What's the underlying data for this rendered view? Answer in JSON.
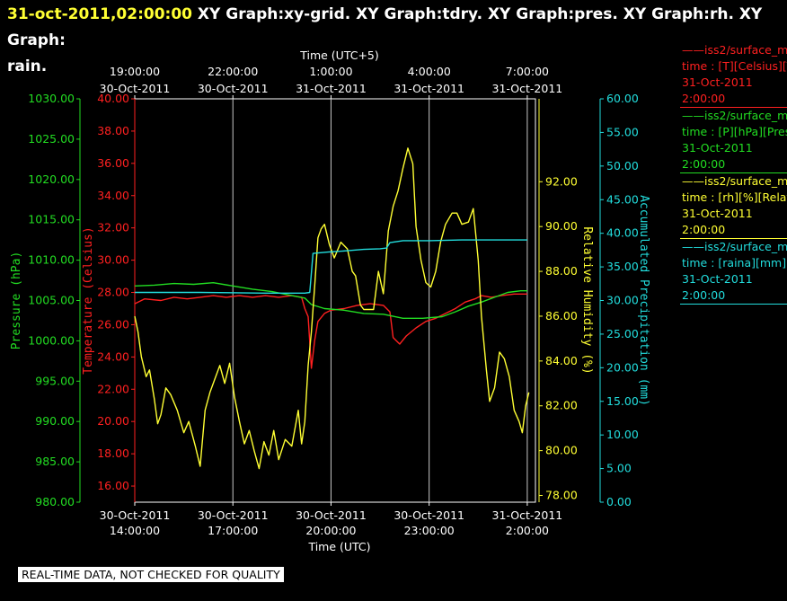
{
  "header": {
    "timestamp": "31-oct-2011,02:00:00",
    "graphs": "  XY Graph:xy-grid.  XY Graph:tdry.  XY Graph:pres.  XY Graph:rh.  XY Graph:",
    "graphs_wrap": "rain."
  },
  "legend": [
    {
      "line1": "——iss2/surface_met",
      "line2": "time : [T][Celsius][T",
      "date": "31-Oct-2011",
      "time": "2:00:00",
      "color": "#ff2020"
    },
    {
      "line1": "——iss2/surface_met",
      "line2": "time : [P][hPa][Pres",
      "date": "31-Oct-2011",
      "time": "2:00:00",
      "color": "#22dd22"
    },
    {
      "line1": "——iss2/surface_met",
      "line2": "time : [rh][%][Relati",
      "date": "31-Oct-2011",
      "time": "2:00:00",
      "color": "#ffff33"
    },
    {
      "line1": "——iss2/surface_met",
      "line2": "time : [raina][mm][A",
      "date": "31-Oct-2011",
      "time": "2:00:00",
      "color": "#22dddd"
    }
  ],
  "footer": {
    "warning": "REAL-TIME DATA, NOT CHECKED FOR QUALITY"
  },
  "chart_data": {
    "type": "line",
    "top_axis": {
      "label": "Time (UTC+5)",
      "ticks": [
        {
          "time": "19:00:00",
          "date": "30-Oct-2011",
          "t": 0
        },
        {
          "time": "22:00:00",
          "date": "30-Oct-2011",
          "t": 3
        },
        {
          "time": "1:00:00",
          "date": "31-Oct-2011",
          "t": 6
        },
        {
          "time": "4:00:00",
          "date": "31-Oct-2011",
          "t": 9
        },
        {
          "time": "7:00:00",
          "date": "31-Oct-2011",
          "t": 12
        }
      ]
    },
    "bottom_axis": {
      "label": "Time (UTC)",
      "ticks": [
        {
          "date": "30-Oct-2011",
          "time": "14:00:00",
          "t": 0
        },
        {
          "date": "30-Oct-2011",
          "time": "17:00:00",
          "t": 3
        },
        {
          "date": "30-Oct-2011",
          "time": "20:00:00",
          "t": 6
        },
        {
          "date": "30-Oct-2011",
          "time": "23:00:00",
          "t": 9
        },
        {
          "date": "31-Oct-2011",
          "time": "2:00:00",
          "t": 12
        }
      ]
    },
    "x_range_hours": [
      0,
      12.25
    ],
    "grid": true,
    "axes": {
      "pressure": {
        "label": "Pressure (hPa)",
        "color": "#22dd22",
        "range": [
          980,
          1030
        ],
        "ticks": [
          "1030.00",
          "1025.00",
          "1020.00",
          "1015.00",
          "1010.00",
          "1005.00",
          "1000.00",
          "995.00",
          "990.00",
          "985.00",
          "980.00"
        ]
      },
      "temperature": {
        "label": "Temperature (Celsius)",
        "color": "#ff2020",
        "range": [
          15,
          40
        ],
        "ticks": [
          "40.00",
          "38.00",
          "36.00",
          "34.00",
          "32.00",
          "30.00",
          "28.00",
          "26.00",
          "24.00",
          "22.00",
          "20.00",
          "18.00",
          "16.00"
        ]
      },
      "rh": {
        "label": "Relative Humidity (%)",
        "color": "#ffff33",
        "range": [
          77.7,
          95.7
        ],
        "ticks": [
          "92.00",
          "90.00",
          "88.00",
          "86.00",
          "84.00",
          "82.00",
          "80.00",
          "78.00"
        ]
      },
      "precip": {
        "label": "Accumulated Precipitation (mm)",
        "color": "#22dddd",
        "range": [
          0,
          60
        ],
        "ticks": [
          "60.00",
          "55.00",
          "50.00",
          "45.00",
          "40.00",
          "35.00",
          "30.00",
          "25.00",
          "20.00",
          "15.00",
          "10.00",
          "5.00",
          "0.00"
        ]
      }
    },
    "series": [
      {
        "name": "iss2/surface_met T",
        "axis": "temperature",
        "color": "#ff2020",
        "points": [
          [
            0,
            27.3
          ],
          [
            0.3,
            27.6
          ],
          [
            0.8,
            27.5
          ],
          [
            1.2,
            27.7
          ],
          [
            1.6,
            27.6
          ],
          [
            2,
            27.7
          ],
          [
            2.4,
            27.8
          ],
          [
            2.8,
            27.7
          ],
          [
            3.2,
            27.8
          ],
          [
            3.6,
            27.7
          ],
          [
            4,
            27.8
          ],
          [
            4.4,
            27.7
          ],
          [
            4.8,
            27.8
          ],
          [
            5.1,
            27.7
          ],
          [
            5.2,
            27.0
          ],
          [
            5.3,
            26.5
          ],
          [
            5.4,
            23.3
          ],
          [
            5.5,
            25.0
          ],
          [
            5.6,
            26.2
          ],
          [
            5.8,
            26.7
          ],
          [
            6,
            26.9
          ],
          [
            6.4,
            27.0
          ],
          [
            6.8,
            27.2
          ],
          [
            7.2,
            27.3
          ],
          [
            7.6,
            27.2
          ],
          [
            7.8,
            26.8
          ],
          [
            7.9,
            25.2
          ],
          [
            8.1,
            24.8
          ],
          [
            8.3,
            25.3
          ],
          [
            8.6,
            25.8
          ],
          [
            8.9,
            26.2
          ],
          [
            9.2,
            26.4
          ],
          [
            9.5,
            26.7
          ],
          [
            9.8,
            27.0
          ],
          [
            10.1,
            27.4
          ],
          [
            10.4,
            27.6
          ],
          [
            10.6,
            27.8
          ],
          [
            10.9,
            27.7
          ],
          [
            11.2,
            27.8
          ],
          [
            11.6,
            27.9
          ],
          [
            11.9,
            27.9
          ],
          [
            12,
            27.9
          ]
        ]
      },
      {
        "name": "iss2/surface_met P",
        "axis": "pressure",
        "color": "#22dd22",
        "points": [
          [
            0,
            1006.8
          ],
          [
            0.6,
            1006.9
          ],
          [
            1.2,
            1007.1
          ],
          [
            1.8,
            1007.0
          ],
          [
            2.4,
            1007.2
          ],
          [
            3,
            1006.8
          ],
          [
            3.6,
            1006.4
          ],
          [
            4.2,
            1006.1
          ],
          [
            4.8,
            1005.6
          ],
          [
            5.2,
            1005.3
          ],
          [
            5.4,
            1004.5
          ],
          [
            5.8,
            1004.0
          ],
          [
            6.4,
            1003.8
          ],
          [
            7,
            1003.4
          ],
          [
            7.6,
            1003.3
          ],
          [
            8.2,
            1002.8
          ],
          [
            8.8,
            1002.8
          ],
          [
            9.4,
            1003.0
          ],
          [
            9.8,
            1003.6
          ],
          [
            10.2,
            1004.3
          ],
          [
            10.6,
            1004.8
          ],
          [
            11,
            1005.4
          ],
          [
            11.4,
            1006.0
          ],
          [
            11.8,
            1006.2
          ],
          [
            12,
            1006.2
          ]
        ]
      },
      {
        "name": "iss2/surface_met rh",
        "axis": "rh",
        "color": "#ffff33",
        "points": [
          [
            0,
            86.0
          ],
          [
            0.1,
            85.3
          ],
          [
            0.2,
            84.2
          ],
          [
            0.35,
            83.3
          ],
          [
            0.45,
            83.6
          ],
          [
            0.6,
            82.3
          ],
          [
            0.7,
            81.2
          ],
          [
            0.8,
            81.6
          ],
          [
            0.95,
            82.8
          ],
          [
            1.1,
            82.5
          ],
          [
            1.3,
            81.8
          ],
          [
            1.5,
            80.8
          ],
          [
            1.65,
            81.3
          ],
          [
            1.85,
            80.2
          ],
          [
            2.0,
            79.3
          ],
          [
            2.15,
            81.8
          ],
          [
            2.3,
            82.6
          ],
          [
            2.45,
            83.2
          ],
          [
            2.6,
            83.8
          ],
          [
            2.75,
            83.0
          ],
          [
            2.9,
            83.9
          ],
          [
            3.05,
            82.4
          ],
          [
            3.2,
            81.3
          ],
          [
            3.35,
            80.3
          ],
          [
            3.5,
            80.9
          ],
          [
            3.65,
            80.0
          ],
          [
            3.8,
            79.2
          ],
          [
            3.95,
            80.4
          ],
          [
            4.1,
            79.8
          ],
          [
            4.25,
            80.9
          ],
          [
            4.4,
            79.6
          ],
          [
            4.6,
            80.5
          ],
          [
            4.8,
            80.2
          ],
          [
            5.0,
            81.8
          ],
          [
            5.1,
            80.3
          ],
          [
            5.2,
            81.3
          ],
          [
            5.3,
            83.8
          ],
          [
            5.4,
            85.3
          ],
          [
            5.5,
            87.3
          ],
          [
            5.6,
            89.5
          ],
          [
            5.7,
            89.9
          ],
          [
            5.8,
            90.1
          ],
          [
            5.95,
            89.2
          ],
          [
            6.1,
            88.6
          ],
          [
            6.3,
            89.3
          ],
          [
            6.5,
            89.0
          ],
          [
            6.65,
            88.0
          ],
          [
            6.75,
            87.8
          ],
          [
            6.9,
            86.5
          ],
          [
            7.0,
            86.3
          ],
          [
            7.15,
            86.3
          ],
          [
            7.3,
            86.3
          ],
          [
            7.45,
            88.0
          ],
          [
            7.6,
            87.0
          ],
          [
            7.75,
            89.8
          ],
          [
            7.9,
            90.9
          ],
          [
            8.05,
            91.6
          ],
          [
            8.2,
            92.6
          ],
          [
            8.35,
            93.5
          ],
          [
            8.5,
            92.8
          ],
          [
            8.6,
            90.0
          ],
          [
            8.75,
            88.5
          ],
          [
            8.9,
            87.5
          ],
          [
            9.05,
            87.3
          ],
          [
            9.2,
            88.0
          ],
          [
            9.35,
            89.3
          ],
          [
            9.5,
            90.1
          ],
          [
            9.7,
            90.6
          ],
          [
            9.85,
            90.6
          ],
          [
            10.0,
            90.1
          ],
          [
            10.2,
            90.2
          ],
          [
            10.35,
            90.8
          ],
          [
            10.5,
            88.5
          ],
          [
            10.6,
            86.0
          ],
          [
            10.75,
            83.6
          ],
          [
            10.85,
            82.2
          ],
          [
            11.0,
            82.8
          ],
          [
            11.15,
            84.4
          ],
          [
            11.3,
            84.1
          ],
          [
            11.45,
            83.3
          ],
          [
            11.6,
            81.8
          ],
          [
            11.75,
            81.3
          ],
          [
            11.85,
            80.8
          ],
          [
            11.95,
            82.0
          ],
          [
            12.05,
            82.6
          ]
        ]
      },
      {
        "name": "iss2/surface_met raina",
        "axis": "precip",
        "color": "#22dddd",
        "points": [
          [
            0,
            31.2
          ],
          [
            2,
            31.2
          ],
          [
            4,
            31.1
          ],
          [
            5.2,
            31.1
          ],
          [
            5.35,
            31.2
          ],
          [
            5.45,
            37.0
          ],
          [
            5.9,
            37.2
          ],
          [
            6.5,
            37.4
          ],
          [
            7,
            37.6
          ],
          [
            7.5,
            37.7
          ],
          [
            7.7,
            37.8
          ],
          [
            7.8,
            38.6
          ],
          [
            8.2,
            38.9
          ],
          [
            9,
            38.9
          ],
          [
            10,
            39.0
          ],
          [
            11,
            39.0
          ],
          [
            12,
            39.0
          ]
        ]
      }
    ]
  }
}
